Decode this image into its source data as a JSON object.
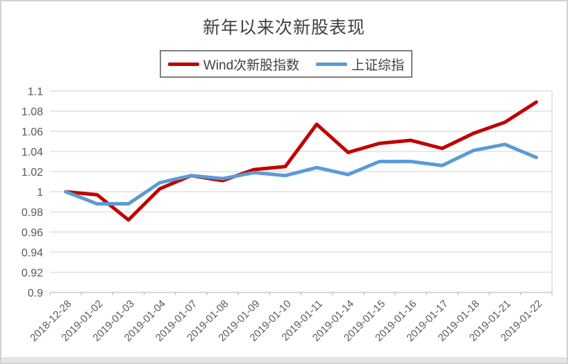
{
  "chart": {
    "title": "新年以来次新股表现"
  },
  "chart_data": {
    "type": "line",
    "title": "新年以来次新股表现",
    "categories": [
      "2018-12-28",
      "2019-01-02",
      "2019-01-03",
      "2019-01-04",
      "2019-01-07",
      "2019-01-08",
      "2019-01-09",
      "2019-01-10",
      "2019-01-11",
      "2019-01-14",
      "2019-01-15",
      "2019-01-16",
      "2019-01-17",
      "2019-01-18",
      "2019-01-21",
      "2019-01-22"
    ],
    "series": [
      {
        "name": "Wind次新股指数",
        "color": "#C00000",
        "values": [
          1.0,
          0.997,
          0.972,
          1.003,
          1.016,
          1.011,
          1.022,
          1.025,
          1.067,
          1.039,
          1.048,
          1.051,
          1.043,
          1.058,
          1.069,
          1.089
        ]
      },
      {
        "name": "上证综指",
        "color": "#5B9BD5",
        "values": [
          1.0,
          0.988,
          0.988,
          1.009,
          1.016,
          1.013,
          1.019,
          1.016,
          1.024,
          1.017,
          1.03,
          1.03,
          1.026,
          1.041,
          1.047,
          1.034
        ]
      }
    ],
    "xlabel": "",
    "ylabel": "",
    "ylim": [
      0.9,
      1.1
    ],
    "yticks": [
      0.9,
      0.92,
      0.94,
      0.96,
      0.98,
      1,
      1.02,
      1.04,
      1.06,
      1.08,
      1.1
    ],
    "ytick_labels": [
      "0.9",
      "0.92",
      "0.94",
      "0.96",
      "0.98",
      "1",
      "1.02",
      "1.04",
      "1.06",
      "1.08",
      "1.1"
    ],
    "grid": true,
    "legend_position": "top"
  },
  "colors": {
    "grid_line": "#D9D9D9",
    "axis_line": "#BFBFBF",
    "plot_right_border": "#D9D9D9",
    "tick_label": "#595959",
    "title_text": "#404040",
    "frame_border": "#D3D3D3",
    "bottom_strip": "#E4E4E4"
  }
}
